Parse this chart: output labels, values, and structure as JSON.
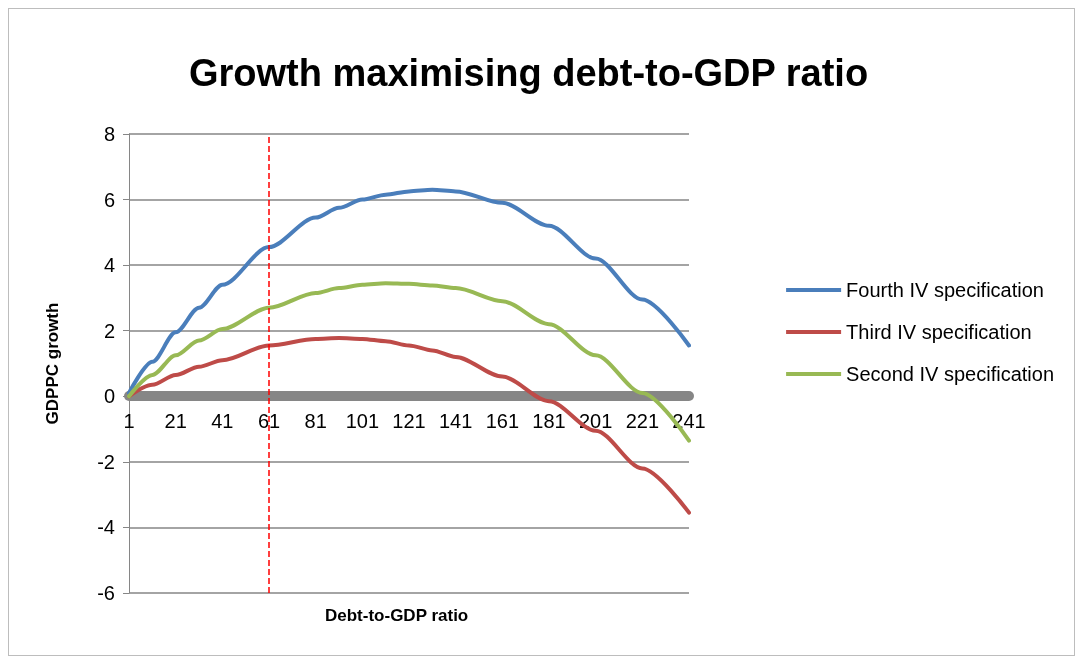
{
  "chart_data": {
    "type": "line",
    "title": "Growth maximising debt-to-GDP ratio",
    "xlabel": "Debt-to-GDP ratio",
    "ylabel": "GDPPC growth",
    "x": [
      1,
      11,
      21,
      31,
      41,
      61,
      81,
      91,
      101,
      111,
      121,
      131,
      141,
      161,
      181,
      201,
      221,
      241
    ],
    "series": [
      {
        "name": "Fourth IV specification",
        "color": "#4a7ebb",
        "values": [
          0.1,
          1.05,
          1.95,
          2.7,
          3.4,
          4.55,
          5.45,
          5.75,
          6.0,
          6.15,
          6.25,
          6.3,
          6.25,
          5.9,
          5.2,
          4.2,
          2.95,
          1.55
        ]
      },
      {
        "name": "Third IV specification",
        "color": "#be4b48",
        "values": [
          0,
          0.35,
          0.65,
          0.9,
          1.1,
          1.55,
          1.75,
          1.78,
          1.75,
          1.68,
          1.55,
          1.4,
          1.2,
          0.6,
          -0.15,
          -1.05,
          -2.2,
          -3.55
        ]
      },
      {
        "name": "Second IV specification",
        "color": "#98b954",
        "values": [
          0,
          0.65,
          1.25,
          1.7,
          2.05,
          2.7,
          3.15,
          3.3,
          3.4,
          3.45,
          3.43,
          3.38,
          3.3,
          2.9,
          2.2,
          1.25,
          0.1,
          -1.35
        ]
      }
    ],
    "xlim": [
      1,
      241
    ],
    "xticks": [
      1,
      21,
      41,
      61,
      81,
      101,
      121,
      141,
      161,
      181,
      201,
      221,
      241
    ],
    "ylim": [
      -6,
      8
    ],
    "yticks": [
      -6,
      -4,
      -2,
      0,
      2,
      4,
      6,
      8
    ],
    "ref_lines": [
      {
        "axis": "x",
        "value": 61,
        "color": "#ff0000",
        "line_style": "dashed"
      }
    ],
    "grid": "y",
    "legend": "right",
    "marker": "none",
    "line_style": "solid"
  }
}
